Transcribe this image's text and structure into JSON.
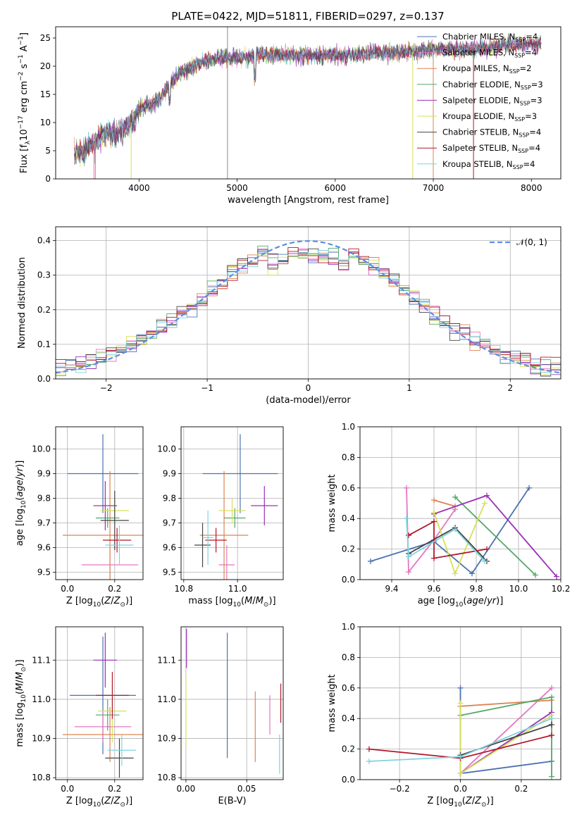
{
  "figure_title": "PLATE=0422, MJD=51811, FIBERID=0297, z=0.137",
  "colors": {
    "chab_miles": "#4c72b0",
    "salp_miles": "#e377c2",
    "krou_miles": "#dd8452",
    "chab_elodie": "#55a868",
    "salp_elodie": "#9b30b8",
    "krou_elodie": "#d6e05a",
    "chab_stelib": "#444444",
    "salp_stelib": "#b2182b",
    "krou_stelib": "#7fd3e0"
  },
  "chart_data": [
    {
      "id": "spectrum",
      "type": "line",
      "title": "PLATE=0422, MJD=51811, FIBERID=0297, z=0.137",
      "xlabel": "wavelength [Angstrom, rest frame]",
      "ylabel": "Flux [f_λ 10^-17 erg cm^-2 s^-1 A^-1]",
      "xlim": [
        3150,
        8300
      ],
      "ylim": [
        0,
        27
      ],
      "xticks": [
        "4000",
        "5000",
        "6000",
        "7000",
        "8000"
      ],
      "yticks": [
        "0",
        "5",
        "10",
        "15",
        "20",
        "25"
      ],
      "x": [
        3350,
        3450,
        3550,
        3650,
        3750,
        3850,
        3950,
        4000,
        4100,
        4200,
        4300,
        4400,
        4500,
        4600,
        4700,
        4800,
        4900,
        5000,
        5100,
        5200,
        5400,
        5600,
        5800,
        6000,
        6200,
        6400,
        6600,
        6800,
        7000,
        7200,
        7400,
        7600,
        7800,
        8000,
        8100
      ],
      "y": [
        4.5,
        5.0,
        6.5,
        8.0,
        8.0,
        9.0,
        10.5,
        12.5,
        13.0,
        14.0,
        16.5,
        18.5,
        19.5,
        20.5,
        21.0,
        21.5,
        21.5,
        21.5,
        21.5,
        22.0,
        22.0,
        22.0,
        22.0,
        22.0,
        22.0,
        22.5,
        22.5,
        22.5,
        23.0,
        23.0,
        23.0,
        23.5,
        24.0,
        24.0,
        24.0
      ],
      "legend_position": "upper right",
      "legend": [
        {
          "label": "Chabrier MILES, N",
          "sub": "SSP",
          "suffix": "=4",
          "color": "#4c72b0"
        },
        {
          "label": "Salpeter MILES, N",
          "sub": "SSP",
          "suffix": "=4",
          "color": "#e377c2"
        },
        {
          "label": "Kroupa MILES, N",
          "sub": "SSP",
          "suffix": "=2",
          "color": "#dd8452"
        },
        {
          "label": "Chabrier ELODIE, N",
          "sub": "SSP",
          "suffix": "=3",
          "color": "#55a868"
        },
        {
          "label": "Salpeter ELODIE, N",
          "sub": "SSP",
          "suffix": "=3",
          "color": "#9b30b8"
        },
        {
          "label": "Kroupa ELODIE, N",
          "sub": "SSP",
          "suffix": "=3",
          "color": "#d6e05a"
        },
        {
          "label": "Chabrier STELIB, N",
          "sub": "SSP",
          "suffix": "=4",
          "color": "#444444"
        },
        {
          "label": "Salpeter STELIB, N",
          "sub": "SSP",
          "suffix": "=4",
          "color": "#b2182b"
        },
        {
          "label": "Kroupa STELIB, N",
          "sub": "SSP",
          "suffix": "=4",
          "color": "#7fd3e0"
        }
      ]
    },
    {
      "id": "residuals",
      "type": "line",
      "xlabel": "(data-model)/error",
      "ylabel": "Normed distribution",
      "xlim": [
        -2.5,
        2.5
      ],
      "ylim": [
        0,
        0.44
      ],
      "xticks": [
        "−2",
        "−1",
        "0",
        "1",
        "2"
      ],
      "yticks": [
        "0.0",
        "0.1",
        "0.2",
        "0.3",
        "0.4"
      ],
      "grid": true,
      "legend": [
        {
          "label": "𝒩(0, 1)",
          "color": "#5b8ee6"
        }
      ],
      "legend_position": "upper right"
    },
    {
      "id": "age_vs_Z",
      "type": "scatter",
      "xlabel": "Z [log10(Z/Z⊙)]",
      "ylabel": "age  [log10(age/yr)]",
      "xlim": [
        -0.05,
        0.32
      ],
      "ylim": [
        9.47,
        10.09
      ],
      "xticks": [
        "0.0",
        "0.2"
      ],
      "yticks": [
        "9.5",
        "9.6",
        "9.7",
        "9.8",
        "9.9",
        "10.0"
      ],
      "grid": true,
      "points": [
        {
          "x": 0.15,
          "y": 9.9,
          "xerr": 0.15,
          "yerr": 0.16,
          "color": "#4c72b0"
        },
        {
          "x": 0.18,
          "y": 9.53,
          "xerr": 0.12,
          "yerr": 0.08,
          "color": "#e377c2"
        },
        {
          "x": 0.18,
          "y": 9.65,
          "xerr": 0.2,
          "yerr": 0.26,
          "color": "#dd8452"
        },
        {
          "x": 0.17,
          "y": 9.72,
          "xerr": 0.05,
          "yerr": 0.04,
          "color": "#55a868"
        },
        {
          "x": 0.16,
          "y": 9.77,
          "xerr": 0.05,
          "yerr": 0.1,
          "color": "#9b30b8"
        },
        {
          "x": 0.2,
          "y": 9.75,
          "xerr": 0.06,
          "yerr": 0.05,
          "color": "#d6e05a"
        },
        {
          "x": 0.2,
          "y": 9.71,
          "xerr": 0.06,
          "yerr": 0.12,
          "color": "#444444"
        },
        {
          "x": 0.21,
          "y": 9.63,
          "xerr": 0.06,
          "yerr": 0.05,
          "color": "#b2182b"
        },
        {
          "x": 0.22,
          "y": 9.61,
          "xerr": 0.06,
          "yerr": 0.08,
          "color": "#7fd3e0"
        }
      ]
    },
    {
      "id": "age_vs_mass",
      "type": "scatter",
      "xlabel": "mass [log10(M/M⊙)]",
      "ylabel": "",
      "xlim": [
        10.79,
        11.17
      ],
      "ylim": [
        9.47,
        10.09
      ],
      "xticks": [
        "10.8",
        "11.0"
      ],
      "yticks": [
        "9.5",
        "9.6",
        "9.7",
        "9.8",
        "9.9",
        "10.0"
      ],
      "grid": true,
      "points": [
        {
          "x": 11.01,
          "y": 9.9,
          "xerr": 0.14,
          "yerr": 0.16,
          "color": "#4c72b0"
        },
        {
          "x": 10.96,
          "y": 9.53,
          "xerr": 0.03,
          "yerr": 0.08,
          "color": "#e377c2"
        },
        {
          "x": 10.95,
          "y": 9.65,
          "xerr": 0.09,
          "yerr": 0.26,
          "color": "#dd8452"
        },
        {
          "x": 10.99,
          "y": 9.72,
          "xerr": 0.04,
          "yerr": 0.04,
          "color": "#55a868"
        },
        {
          "x": 11.1,
          "y": 9.77,
          "xerr": 0.05,
          "yerr": 0.08,
          "color": "#9b30b8"
        },
        {
          "x": 10.98,
          "y": 9.75,
          "xerr": 0.05,
          "yerr": 0.05,
          "color": "#d6e05a"
        },
        {
          "x": 10.87,
          "y": 9.61,
          "xerr": 0.03,
          "yerr": 0.09,
          "color": "#444444"
        },
        {
          "x": 10.92,
          "y": 9.63,
          "xerr": 0.04,
          "yerr": 0.05,
          "color": "#b2182b"
        },
        {
          "x": 10.89,
          "y": 9.64,
          "xerr": 0.02,
          "yerr": 0.11,
          "color": "#7fd3e0"
        }
      ]
    },
    {
      "id": "mw_vs_age",
      "type": "line",
      "xlabel": "age  [log10(age/yr)]",
      "ylabel": "mass weight",
      "xlim": [
        9.25,
        10.2
      ],
      "ylim": [
        0,
        1
      ],
      "xticks": [
        "9.4",
        "9.6",
        "9.8",
        "10.0",
        "10.2"
      ],
      "yticks": [
        "0.0",
        "0.2",
        "0.4",
        "0.6",
        "0.8",
        "1.0"
      ],
      "grid": true,
      "series": [
        {
          "color": "#4c72b0",
          "x": [
            9.3,
            9.6,
            9.78,
            10.05
          ],
          "y": [
            0.12,
            0.25,
            0.04,
            0.6
          ]
        },
        {
          "color": "#e377c2",
          "x": [
            9.47,
            9.48,
            9.6,
            9.7
          ],
          "y": [
            0.6,
            0.05,
            0.26,
            0.46
          ]
        },
        {
          "color": "#dd8452",
          "x": [
            9.6,
            9.7
          ],
          "y": [
            0.52,
            0.48
          ]
        },
        {
          "color": "#55a868",
          "x": [
            9.7,
            10.08
          ],
          "y": [
            0.54,
            0.03
          ]
        },
        {
          "color": "#9b30b8",
          "x": [
            9.6,
            9.85,
            10.18
          ],
          "y": [
            0.43,
            0.55,
            0.02
          ]
        },
        {
          "color": "#d6e05a",
          "x": [
            9.6,
            9.7,
            9.84
          ],
          "y": [
            0.44,
            0.04,
            0.5
          ]
        },
        {
          "color": "#444444",
          "x": [
            9.48,
            9.7,
            9.85
          ],
          "y": [
            0.17,
            0.34,
            0.12
          ]
        },
        {
          "color": "#b2182b",
          "x": [
            9.48,
            9.6,
            9.6,
            9.85
          ],
          "y": [
            0.29,
            0.38,
            0.14,
            0.2
          ]
        },
        {
          "color": "#7fd3e0",
          "x": [
            9.47,
            9.48,
            9.7,
            9.84
          ],
          "y": [
            0.4,
            0.15,
            0.33,
            0.12
          ]
        }
      ]
    },
    {
      "id": "mass_vs_Z",
      "type": "scatter",
      "xlabel": "Z [log10(Z/Z⊙)]",
      "ylabel": "mass [log10(M/M⊙)]",
      "xlim": [
        -0.05,
        0.32
      ],
      "ylim": [
        10.795,
        11.185
      ],
      "xticks": [
        "0.0",
        "0.2"
      ],
      "yticks": [
        "10.8",
        "10.9",
        "11.0",
        "11.1"
      ],
      "grid": true,
      "points": [
        {
          "x": 0.15,
          "y": 11.01,
          "xerr": 0.14,
          "yerr": 0.15,
          "color": "#4c72b0"
        },
        {
          "x": 0.15,
          "y": 10.93,
          "xerr": 0.12,
          "yerr": 0.04,
          "color": "#e377c2"
        },
        {
          "x": 0.18,
          "y": 10.91,
          "xerr": 0.2,
          "yerr": 0.07,
          "color": "#dd8452"
        },
        {
          "x": 0.17,
          "y": 10.96,
          "xerr": 0.05,
          "yerr": 0.04,
          "color": "#55a868"
        },
        {
          "x": 0.16,
          "y": 11.1,
          "xerr": 0.05,
          "yerr": 0.07,
          "color": "#9b30b8"
        },
        {
          "x": 0.19,
          "y": 10.97,
          "xerr": 0.06,
          "yerr": 0.08,
          "color": "#d6e05a"
        },
        {
          "x": 0.22,
          "y": 10.85,
          "xerr": 0.06,
          "yerr": 0.05,
          "color": "#444444"
        },
        {
          "x": 0.19,
          "y": 11.01,
          "xerr": 0.07,
          "yerr": 0.06,
          "color": "#b2182b"
        },
        {
          "x": 0.23,
          "y": 10.87,
          "xerr": 0.06,
          "yerr": 0.04,
          "color": "#7fd3e0"
        }
      ]
    },
    {
      "id": "mass_vs_ebv",
      "type": "scatter",
      "xlabel": "E(B-V)",
      "ylabel": "",
      "xlim": [
        -0.004,
        0.08
      ],
      "ylim": [
        10.795,
        11.185
      ],
      "xticks": [
        "0.00",
        "0.05"
      ],
      "yticks": [
        "10.8",
        "10.9",
        "11.0",
        "11.1"
      ],
      "grid": true,
      "points": [
        {
          "x": 0.0005,
          "y": 11.13,
          "yerr": 0.05,
          "color": "#9b30b8"
        },
        {
          "x": 0.0,
          "y": 10.97,
          "yerr": 0.09,
          "color": "#d6e05a"
        },
        {
          "x": 0.034,
          "y": 11.01,
          "yerr": 0.16,
          "color": "#4c72b0"
        },
        {
          "x": 0.057,
          "y": 10.93,
          "yerr": 0.09,
          "color": "#dd8452"
        },
        {
          "x": 0.069,
          "y": 10.96,
          "yerr": 0.05,
          "color": "#e377c2"
        },
        {
          "x": 0.078,
          "y": 10.99,
          "yerr": 0.05,
          "color": "#b2182b"
        },
        {
          "x": 0.077,
          "y": 10.86,
          "yerr": 0.05,
          "color": "#7fd3e0"
        }
      ]
    },
    {
      "id": "mw_vs_Z",
      "type": "line",
      "xlabel": "Z [log10(Z/Z⊙)]",
      "ylabel": "mass weight",
      "xlim": [
        -0.33,
        0.33
      ],
      "ylim": [
        0,
        1
      ],
      "xticks": [
        "−0.2",
        "0.0",
        "0.2"
      ],
      "yticks": [
        "0.0",
        "0.2",
        "0.4",
        "0.6",
        "0.8",
        "1.0"
      ],
      "grid": true,
      "series": [
        {
          "color": "#4c72b0",
          "x": [
            0.0,
            0.0,
            0.3
          ],
          "y": [
            0.6,
            0.04,
            0.12
          ]
        },
        {
          "color": "#e377c2",
          "x": [
            0.0,
            0.3
          ],
          "y": [
            0.04,
            0.6
          ]
        },
        {
          "color": "#dd8452",
          "x": [
            0.0,
            0.3
          ],
          "y": [
            0.48,
            0.52
          ]
        },
        {
          "color": "#55a868",
          "x": [
            0.0,
            0.3,
            0.3
          ],
          "y": [
            0.42,
            0.54,
            0.02
          ]
        },
        {
          "color": "#9b30b8",
          "x": [
            0.0,
            0.3
          ],
          "y": [
            0.04,
            0.44
          ]
        },
        {
          "color": "#d6e05a",
          "x": [
            0.0,
            0.0,
            0.3
          ],
          "y": [
            0.5,
            0.04,
            0.42
          ]
        },
        {
          "color": "#444444",
          "x": [
            0.0,
            0.3
          ],
          "y": [
            0.16,
            0.36
          ]
        },
        {
          "color": "#b2182b",
          "x": [
            -0.3,
            0.0,
            0.3
          ],
          "y": [
            0.2,
            0.14,
            0.29
          ]
        },
        {
          "color": "#7fd3e0",
          "x": [
            -0.3,
            0.0,
            0.3
          ],
          "y": [
            0.12,
            0.15,
            0.4
          ]
        }
      ]
    }
  ]
}
